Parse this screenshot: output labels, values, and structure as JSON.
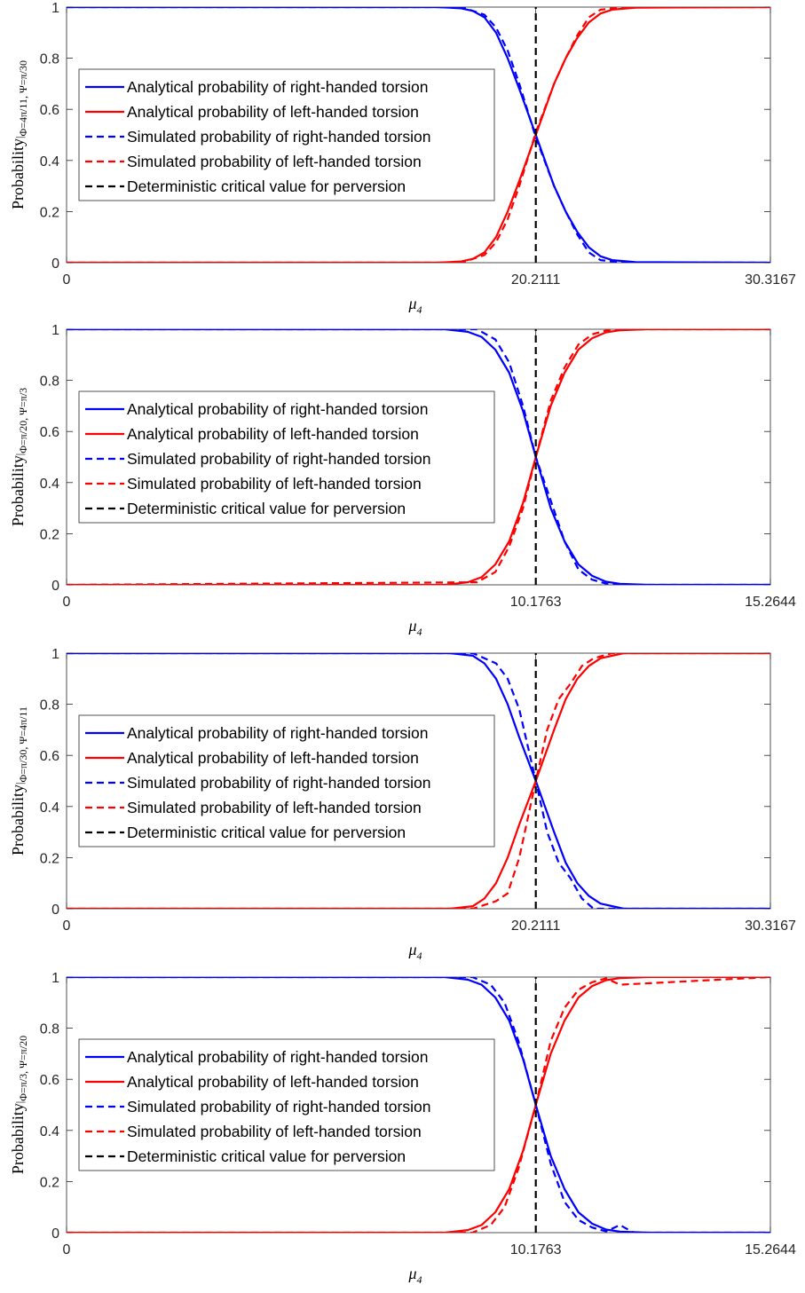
{
  "chart_data": [
    {
      "type": "line",
      "ylabel": "Probability",
      "ylabel_subscript": "Φ=4π/11, Ψ=π/30",
      "xlabel": "μ",
      "xlabel_subscript": "4",
      "xlim": [
        0,
        30.3167
      ],
      "ylim": [
        0,
        1
      ],
      "xticks": [
        0,
        20.2111,
        30.3167
      ],
      "xtick_labels": [
        "0",
        "20.2111",
        "30.3167"
      ],
      "yticks": [
        0,
        0.2,
        0.4,
        0.6,
        0.8,
        1
      ],
      "ytick_labels": [
        "0",
        "0.2",
        "0.4",
        "0.6",
        "0.8",
        "1"
      ],
      "critical_value": 20.2111,
      "legend_position": "center-left",
      "series": [
        {
          "name": "Analytical probability of right-handed torsion",
          "color": "#0000ff",
          "dash": "solid",
          "x": [
            0,
            16,
            17,
            17.5,
            18,
            18.5,
            19,
            19.5,
            20.2111,
            21,
            21.5,
            22,
            22.5,
            23,
            23.5,
            24.5,
            30.3167
          ],
          "y": [
            1,
            1,
            0.995,
            0.985,
            0.96,
            0.9,
            0.8,
            0.68,
            0.5,
            0.3,
            0.2,
            0.12,
            0.06,
            0.025,
            0.01,
            0.002,
            0
          ]
        },
        {
          "name": "Analytical probability of left-handed torsion",
          "color": "#ff0000",
          "dash": "solid",
          "x": [
            0,
            16,
            17,
            17.5,
            18,
            18.5,
            19,
            19.5,
            20.2111,
            21,
            21.5,
            22,
            22.5,
            23,
            23.5,
            24.5,
            30.3167
          ],
          "y": [
            0,
            0,
            0.005,
            0.015,
            0.04,
            0.1,
            0.2,
            0.32,
            0.5,
            0.7,
            0.8,
            0.88,
            0.94,
            0.975,
            0.99,
            0.998,
            1
          ]
        },
        {
          "name": "Simulated probability of right-handed torsion",
          "color": "#0000ff",
          "dash": "dashed",
          "x": [
            0,
            17,
            18,
            18.5,
            19,
            19.5,
            20.2111,
            21,
            21.5,
            22,
            22.5,
            23,
            24,
            30.3167
          ],
          "y": [
            1,
            1,
            0.97,
            0.92,
            0.83,
            0.7,
            0.49,
            0.3,
            0.2,
            0.11,
            0.04,
            0.01,
            0,
            0
          ]
        },
        {
          "name": "Simulated probability of left-handed torsion",
          "color": "#ff0000",
          "dash": "dashed",
          "x": [
            0,
            17,
            18,
            18.5,
            19,
            19.5,
            20.2111,
            21,
            21.5,
            22,
            22.5,
            23,
            24,
            30.3167
          ],
          "y": [
            0,
            0,
            0.03,
            0.08,
            0.17,
            0.3,
            0.51,
            0.7,
            0.8,
            0.89,
            0.96,
            0.99,
            1,
            1
          ]
        },
        {
          "name": "Deterministic critical value for perversion",
          "color": "#000000",
          "dash": "dashed",
          "x": [
            20.2111,
            20.2111
          ],
          "y": [
            0,
            1
          ]
        }
      ]
    },
    {
      "type": "line",
      "ylabel": "Probability",
      "ylabel_subscript": "Φ=π/20, Ψ=π/3",
      "xlabel": "μ",
      "xlabel_subscript": "4",
      "xlim": [
        0,
        15.2644
      ],
      "ylim": [
        0,
        1
      ],
      "xticks": [
        0,
        10.1763,
        15.2644
      ],
      "xtick_labels": [
        "0",
        "10.1763",
        "15.2644"
      ],
      "yticks": [
        0,
        0.2,
        0.4,
        0.6,
        0.8,
        1
      ],
      "ytick_labels": [
        "0",
        "0.2",
        "0.4",
        "0.6",
        "0.8",
        "1"
      ],
      "critical_value": 10.1763,
      "legend_position": "center-left",
      "series": [
        {
          "name": "Analytical probability of right-handed torsion",
          "color": "#0000ff",
          "dash": "solid",
          "x": [
            0,
            8.2,
            8.7,
            9.0,
            9.3,
            9.6,
            9.9,
            10.1763,
            10.5,
            10.8,
            11.1,
            11.4,
            11.7,
            12.0,
            12.6,
            15.2644
          ],
          "y": [
            1,
            1,
            0.99,
            0.97,
            0.92,
            0.83,
            0.68,
            0.5,
            0.3,
            0.17,
            0.08,
            0.035,
            0.012,
            0.004,
            0,
            0
          ]
        },
        {
          "name": "Analytical probability of left-handed torsion",
          "color": "#ff0000",
          "dash": "solid",
          "x": [
            0,
            8.2,
            8.7,
            9.0,
            9.3,
            9.6,
            9.9,
            10.1763,
            10.5,
            10.8,
            11.1,
            11.4,
            11.7,
            12.0,
            12.6,
            15.2644
          ],
          "y": [
            0,
            0,
            0.01,
            0.03,
            0.08,
            0.17,
            0.32,
            0.5,
            0.7,
            0.83,
            0.92,
            0.965,
            0.988,
            0.996,
            1,
            1
          ]
        },
        {
          "name": "Simulated probability of right-handed torsion",
          "color": "#0000ff",
          "dash": "dashed",
          "x": [
            0,
            8.9,
            9.3,
            9.6,
            9.9,
            10.1763,
            10.5,
            10.8,
            11.1,
            11.4,
            11.7,
            12.0,
            15.2644
          ],
          "y": [
            1,
            1,
            0.96,
            0.87,
            0.7,
            0.5,
            0.33,
            0.17,
            0.06,
            0.02,
            0.005,
            0,
            0
          ]
        },
        {
          "name": "Simulated probability of left-handed torsion",
          "color": "#ff0000",
          "dash": "dashed",
          "x": [
            0,
            8.9,
            9.3,
            9.6,
            9.9,
            10.1763,
            10.5,
            10.8,
            11.1,
            11.4,
            11.7,
            12.0,
            15.2644
          ],
          "y": [
            0,
            0.01,
            0.05,
            0.15,
            0.3,
            0.5,
            0.72,
            0.85,
            0.94,
            0.98,
            0.995,
            1,
            1
          ]
        },
        {
          "name": "Deterministic critical value for perversion",
          "color": "#000000",
          "dash": "dashed",
          "x": [
            10.1763,
            10.1763
          ],
          "y": [
            0,
            1
          ]
        }
      ]
    },
    {
      "type": "line",
      "ylabel": "Probability",
      "ylabel_subscript": "Φ=π/30, Ψ=4π/11",
      "xlabel": "μ",
      "xlabel_subscript": "4",
      "xlim": [
        0,
        30.3167
      ],
      "ylim": [
        0,
        1
      ],
      "xticks": [
        0,
        20.2111,
        30.3167
      ],
      "xtick_labels": [
        "0",
        "20.2111",
        "30.3167"
      ],
      "yticks": [
        0,
        0.2,
        0.4,
        0.6,
        0.8,
        1
      ],
      "ytick_labels": [
        "0",
        "0.2",
        "0.4",
        "0.6",
        "0.8",
        "1"
      ],
      "critical_value": 20.2111,
      "legend_position": "center-left",
      "series": [
        {
          "name": "Analytical probability of right-handed torsion",
          "color": "#0000ff",
          "dash": "solid",
          "x": [
            0,
            16.5,
            17.5,
            18,
            18.5,
            19,
            19.5,
            20.2111,
            21,
            21.5,
            22,
            22.5,
            23,
            24,
            30.3167
          ],
          "y": [
            1,
            1,
            0.99,
            0.96,
            0.9,
            0.8,
            0.67,
            0.5,
            0.3,
            0.18,
            0.1,
            0.05,
            0.02,
            0,
            0
          ]
        },
        {
          "name": "Analytical probability of left-handed torsion",
          "color": "#ff0000",
          "dash": "solid",
          "x": [
            0,
            16.5,
            17.5,
            18,
            18.5,
            19,
            19.5,
            20.2111,
            21,
            21.5,
            22,
            22.5,
            23,
            24,
            30.3167
          ],
          "y": [
            0,
            0,
            0.01,
            0.04,
            0.1,
            0.2,
            0.33,
            0.5,
            0.7,
            0.82,
            0.9,
            0.95,
            0.98,
            1,
            1
          ]
        },
        {
          "name": "Simulated probability of right-handed torsion",
          "color": "#0000ff",
          "dash": "dashed",
          "x": [
            0,
            17.5,
            18.5,
            19,
            19.5,
            20.2111,
            20.7,
            21.2,
            21.7,
            22.2,
            22.7,
            30.3167
          ],
          "y": [
            1,
            1,
            0.96,
            0.9,
            0.78,
            0.5,
            0.3,
            0.18,
            0.12,
            0.04,
            0,
            0
          ]
        },
        {
          "name": "Simulated probability of left-handed torsion",
          "color": "#ff0000",
          "dash": "dashed",
          "x": [
            0,
            17.5,
            18.5,
            19,
            19.5,
            20.2111,
            20.7,
            21.2,
            21.7,
            22.2,
            22.7,
            23.5,
            30.3167
          ],
          "y": [
            0,
            0,
            0.03,
            0.06,
            0.2,
            0.5,
            0.7,
            0.82,
            0.88,
            0.95,
            0.98,
            1,
            1
          ]
        },
        {
          "name": "Deterministic critical value for perversion",
          "color": "#000000",
          "dash": "dashed",
          "x": [
            20.2111,
            20.2111
          ],
          "y": [
            0,
            1
          ]
        }
      ]
    },
    {
      "type": "line",
      "ylabel": "Probability",
      "ylabel_subscript": "Φ=π/3, Ψ=π/20",
      "xlabel": "μ",
      "xlabel_subscript": "4",
      "xlim": [
        0,
        15.2644
      ],
      "ylim": [
        0,
        1
      ],
      "xticks": [
        0,
        10.1763,
        15.2644
      ],
      "xtick_labels": [
        "0",
        "10.1763",
        "15.2644"
      ],
      "yticks": [
        0,
        0.2,
        0.4,
        0.6,
        0.8,
        1
      ],
      "ytick_labels": [
        "0",
        "0.2",
        "0.4",
        "0.6",
        "0.8",
        "1"
      ],
      "critical_value": 10.1763,
      "legend_position": "center-left",
      "series": [
        {
          "name": "Analytical probability of right-handed torsion",
          "color": "#0000ff",
          "dash": "solid",
          "x": [
            0,
            8.2,
            8.7,
            9.0,
            9.3,
            9.6,
            9.9,
            10.1763,
            10.5,
            10.8,
            11.1,
            11.4,
            11.7,
            12.0,
            12.6,
            15.2644
          ],
          "y": [
            1,
            1,
            0.99,
            0.97,
            0.92,
            0.83,
            0.68,
            0.5,
            0.3,
            0.17,
            0.08,
            0.035,
            0.012,
            0.004,
            0,
            0
          ]
        },
        {
          "name": "Analytical probability of left-handed torsion",
          "color": "#ff0000",
          "dash": "solid",
          "x": [
            0,
            8.2,
            8.7,
            9.0,
            9.3,
            9.6,
            9.9,
            10.1763,
            10.5,
            10.8,
            11.1,
            11.4,
            11.7,
            12.0,
            12.6,
            15.2644
          ],
          "y": [
            0,
            0,
            0.01,
            0.03,
            0.08,
            0.17,
            0.32,
            0.5,
            0.7,
            0.83,
            0.92,
            0.965,
            0.988,
            0.996,
            1,
            1
          ]
        },
        {
          "name": "Simulated probability of right-handed torsion",
          "color": "#0000ff",
          "dash": "dashed",
          "x": [
            0,
            8.8,
            9.2,
            9.5,
            9.8,
            10.1763,
            10.5,
            10.8,
            11.1,
            11.4,
            11.7,
            12.0,
            12.3,
            15.2644
          ],
          "y": [
            1,
            1,
            0.97,
            0.9,
            0.75,
            0.5,
            0.27,
            0.12,
            0.05,
            0.02,
            0.005,
            0.03,
            0,
            0
          ]
        },
        {
          "name": "Simulated probability of left-handed torsion",
          "color": "#ff0000",
          "dash": "dashed",
          "x": [
            0,
            8.8,
            9.2,
            9.5,
            9.8,
            10.1763,
            10.5,
            10.8,
            11.1,
            11.4,
            11.7,
            12.0,
            15.2644
          ],
          "y": [
            0,
            0,
            0.03,
            0.1,
            0.25,
            0.5,
            0.75,
            0.88,
            0.95,
            0.98,
            0.995,
            0.97,
            1
          ]
        },
        {
          "name": "Deterministic critical value for perversion",
          "color": "#000000",
          "dash": "dashed",
          "x": [
            10.1763,
            10.1763
          ],
          "y": [
            0,
            1
          ]
        }
      ]
    }
  ]
}
